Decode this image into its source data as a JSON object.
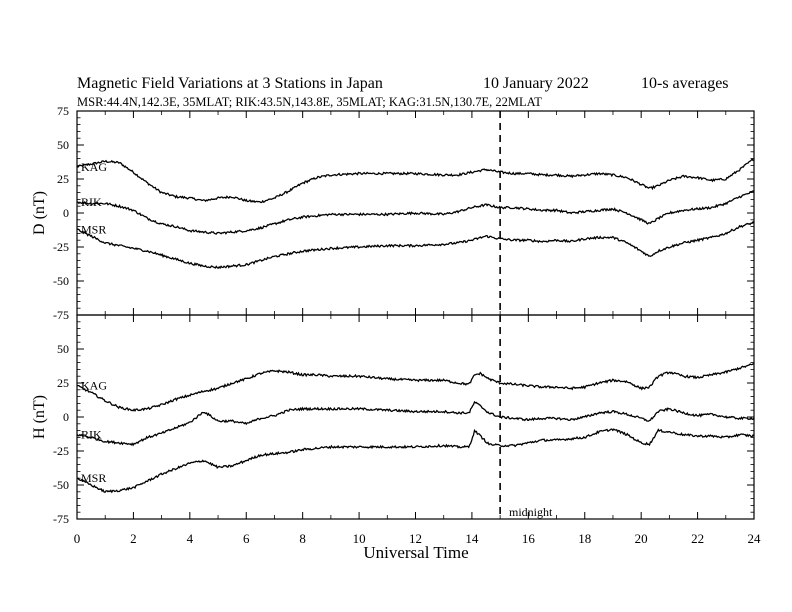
{
  "chart_data": {
    "type": "line",
    "title": "Magnetic Field Variations at 3 Stations in Japan",
    "date": "10 January  2022",
    "averaging": "10-s averages",
    "subtitle": "MSR:44.4N,142.3E, 35MLAT;  RIK:43.5N,143.8E, 35MLAT;  KAG:31.5N,130.7E, 22MLAT",
    "xlabel": "Universal Time",
    "xlim": [
      0,
      24
    ],
    "x_ticks": [
      "0",
      "2",
      "4",
      "6",
      "8",
      "10",
      "12",
      "14",
      "16",
      "18",
      "20",
      "22",
      "24"
    ],
    "ylim": [
      -75,
      75
    ],
    "y_ticks": [
      "75",
      "50",
      "25",
      "0",
      "-25",
      "-50",
      "-75"
    ],
    "midnight_marker": {
      "x": 15,
      "label": "midnight"
    },
    "panels": [
      {
        "ylabel": "D (nT)",
        "series": [
          {
            "name": "KAG",
            "x": [
              0,
              0.5,
              1,
              1.5,
              2,
              2.5,
              3,
              3.5,
              4,
              4.5,
              5,
              5.5,
              6,
              6.5,
              7,
              7.5,
              8,
              8.5,
              9,
              10,
              11,
              12,
              13,
              13.5,
              14,
              14.5,
              15,
              15.5,
              16,
              16.5,
              17,
              17.5,
              18,
              18.5,
              19,
              19.5,
              20,
              20.3,
              20.6,
              21,
              21.5,
              22,
              22.5,
              23,
              23.5,
              24
            ],
            "y": [
              34,
              36,
              38,
              37,
              30,
              22,
              15,
              12,
              11,
              9,
              11,
              12,
              9,
              8,
              11,
              16,
              22,
              26,
              28,
              29,
              29,
              29,
              28,
              28,
              30,
              32,
              30,
              29,
              29,
              28,
              28,
              27,
              28,
              29,
              28,
              26,
              21,
              18,
              20,
              24,
              27,
              26,
              24,
              25,
              32,
              40
            ]
          },
          {
            "name": "RIK",
            "x": [
              0,
              0.5,
              1,
              1.5,
              2,
              2.5,
              3,
              3.5,
              4,
              4.5,
              5,
              5.5,
              6,
              6.5,
              7,
              7.5,
              8,
              8.5,
              9,
              10,
              11,
              12,
              13,
              13.5,
              14,
              14.5,
              15,
              15.5,
              16,
              16.5,
              17,
              17.5,
              18,
              18.5,
              19,
              19.5,
              20,
              20.3,
              20.6,
              21,
              21.5,
              22,
              22.5,
              23,
              23.5,
              24
            ],
            "y": [
              8,
              7,
              7,
              5,
              2,
              -4,
              -8,
              -10,
              -13,
              -14,
              -15,
              -14,
              -13,
              -11,
              -8,
              -5,
              -3,
              -2,
              -1,
              -1,
              -1,
              0,
              -1,
              1,
              4,
              6,
              4,
              4,
              3,
              2,
              2,
              0,
              1,
              2,
              3,
              0,
              -5,
              -8,
              -4,
              0,
              2,
              3,
              4,
              7,
              12,
              16
            ]
          },
          {
            "name": "MSR",
            "x": [
              0,
              0.5,
              1,
              1.5,
              2,
              2.5,
              3,
              3.5,
              4,
              4.5,
              5,
              5.5,
              6,
              6.5,
              7,
              7.5,
              8,
              8.5,
              9,
              10,
              11,
              12,
              13,
              13.5,
              14,
              14.5,
              15,
              15.5,
              16,
              16.5,
              17,
              17.5,
              18,
              18.5,
              19,
              19.5,
              20,
              20.3,
              20.6,
              21,
              21.5,
              22,
              22.5,
              23,
              23.5,
              24
            ],
            "y": [
              -12,
              -17,
              -22,
              -24,
              -26,
              -28,
              -31,
              -34,
              -37,
              -39,
              -40,
              -39,
              -38,
              -35,
              -32,
              -30,
              -28,
              -27,
              -26,
              -25,
              -24,
              -24,
              -23,
              -22,
              -20,
              -17,
              -19,
              -20,
              -20,
              -21,
              -20,
              -21,
              -19,
              -18,
              -18,
              -22,
              -28,
              -32,
              -28,
              -25,
              -22,
              -20,
              -18,
              -15,
              -10,
              -7
            ]
          }
        ]
      },
      {
        "ylabel": "H (nT)",
        "series": [
          {
            "name": "KAG",
            "x": [
              0,
              0.5,
              1,
              1.5,
              2,
              2.5,
              3,
              3.5,
              4,
              4.5,
              5,
              5.5,
              6,
              6.5,
              7,
              7.5,
              8,
              8.5,
              9,
              10,
              11,
              12,
              13,
              13.5,
              13.9,
              14.1,
              14.3,
              14.6,
              15,
              15.5,
              16,
              16.5,
              17,
              17.5,
              18,
              18.5,
              19,
              19.5,
              20,
              20.3,
              20.6,
              21,
              21.5,
              22,
              22.5,
              23,
              23.5,
              24
            ],
            "y": [
              23,
              18,
              12,
              7,
              5,
              6,
              9,
              13,
              16,
              19,
              21,
              25,
              28,
              32,
              34,
              33,
              31,
              31,
              30,
              30,
              28,
              27,
              27,
              25,
              24,
              31,
              32,
              28,
              25,
              24,
              23,
              22,
              22,
              21,
              22,
              25,
              27,
              26,
              21,
              22,
              30,
              33,
              30,
              29,
              31,
              33,
              36,
              39
            ]
          },
          {
            "name": "RIK",
            "x": [
              0,
              0.5,
              1,
              1.5,
              2,
              2.5,
              3,
              3.5,
              4,
              4.5,
              5,
              5.5,
              6,
              6.5,
              7,
              7.5,
              8,
              8.5,
              9,
              10,
              11,
              12,
              13,
              13.5,
              13.9,
              14.1,
              14.3,
              14.6,
              15,
              15.5,
              16,
              16.5,
              17,
              17.5,
              18,
              18.5,
              19,
              19.5,
              20,
              20.3,
              20.6,
              21,
              21.5,
              22,
              22.5,
              23,
              23.5,
              24
            ],
            "y": [
              -13,
              -15,
              -18,
              -19,
              -20,
              -15,
              -12,
              -8,
              -4,
              4,
              -3,
              -3,
              -5,
              -1,
              1,
              5,
              6,
              6,
              6,
              6,
              5,
              4,
              4,
              3,
              3,
              11,
              8,
              3,
              0,
              -1,
              -2,
              -1,
              -1,
              -2,
              0,
              3,
              4,
              2,
              -1,
              -3,
              4,
              6,
              3,
              1,
              2,
              0,
              -1,
              -1
            ]
          },
          {
            "name": "MSR",
            "x": [
              0,
              0.5,
              1,
              1.5,
              2,
              2.5,
              3,
              3.5,
              4,
              4.5,
              5,
              5.5,
              6,
              6.5,
              7,
              7.5,
              8,
              8.5,
              9,
              10,
              11,
              12,
              13,
              13.5,
              13.9,
              14.1,
              14.3,
              14.6,
              15,
              15.5,
              16,
              16.5,
              17,
              17.5,
              18,
              18.5,
              19,
              19.5,
              20,
              20.3,
              20.6,
              21,
              21.5,
              22,
              22.5,
              23,
              23.5,
              24
            ],
            "y": [
              -45,
              -50,
              -55,
              -54,
              -52,
              -47,
              -42,
              -38,
              -34,
              -32,
              -37,
              -36,
              -32,
              -28,
              -27,
              -26,
              -24,
              -23,
              -22,
              -22,
              -22,
              -22,
              -21,
              -22,
              -22,
              -10,
              -14,
              -20,
              -21,
              -21,
              -19,
              -17,
              -17,
              -16,
              -15,
              -11,
              -9,
              -13,
              -19,
              -20,
              -10,
              -11,
              -13,
              -14,
              -14,
              -15,
              -13,
              -14
            ]
          }
        ]
      }
    ]
  }
}
